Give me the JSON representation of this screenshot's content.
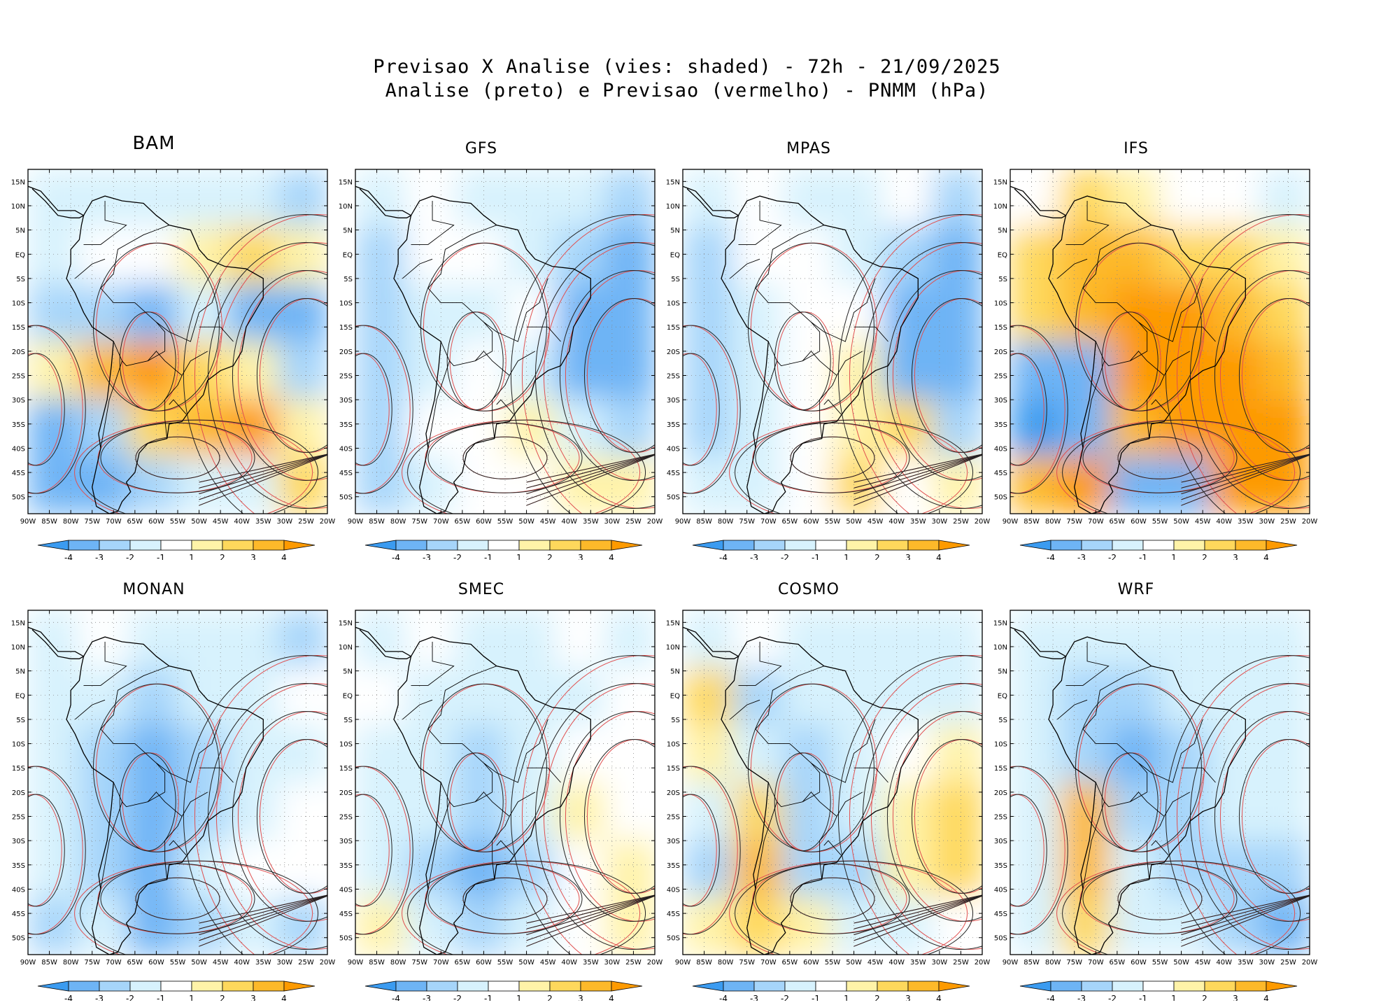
{
  "header": {
    "title_line1": "Previsao X Analise (vies: shaded) - 72h - 21/09/2025",
    "title_line2": "Analise (preto) e Previsao (vermelho) - PNMM (hPa)"
  },
  "axes": {
    "lat_labels": [
      "15N",
      "10N",
      "5N",
      "EQ",
      "5S",
      "10S",
      "15S",
      "20S",
      "25S",
      "30S",
      "35S",
      "40S",
      "45S",
      "50S"
    ],
    "lon_labels": [
      "90W",
      "85W",
      "80W",
      "75W",
      "70W",
      "65W",
      "60W",
      "55W",
      "50W",
      "45W",
      "40W",
      "35W",
      "30W",
      "25W",
      "20W"
    ]
  },
  "colorbar": {
    "labels": [
      "-4",
      "-3",
      "-2",
      "-1",
      "1",
      "2",
      "3",
      "4"
    ],
    "colors": [
      "#3b9bf0",
      "#6eb4f5",
      "#a6d5fa",
      "#d7f2fd",
      "#ffffff",
      "#fff3a8",
      "#fed85c",
      "#fdb92a",
      "#fd9a00"
    ]
  },
  "panels": [
    {
      "name": "BAM",
      "bold": true,
      "bias": [
        -1,
        -1,
        -1,
        -1,
        -1,
        -2,
        -1,
        0,
        0,
        1,
        2,
        1,
        -2,
        -2,
        -3,
        -1,
        -3,
        -3,
        1,
        3,
        4,
        2,
        1,
        -2,
        -3,
        -2,
        2,
        3,
        4,
        1,
        -3,
        -3,
        -2,
        -1,
        -1,
        2
      ]
    },
    {
      "name": "GFS",
      "bold": false,
      "bias": [
        -1,
        0,
        -1,
        -1,
        -1,
        -2,
        -2,
        0,
        0,
        -1,
        -2,
        -3,
        -2,
        -1,
        -1,
        0,
        -3,
        -3,
        -2,
        -1,
        0,
        -1,
        -3,
        -3,
        -2,
        0,
        0,
        1,
        -1,
        -2,
        -2,
        -1,
        0,
        0,
        1,
        1
      ]
    },
    {
      "name": "MPAS",
      "bold": false,
      "bias": [
        -1,
        0,
        -1,
        -1,
        0,
        -2,
        -2,
        0,
        0,
        -1,
        -2,
        -3,
        -2,
        -1,
        0,
        0,
        -3,
        -3,
        -2,
        -1,
        0,
        1,
        -3,
        -3,
        -2,
        -1,
        0,
        1,
        2,
        -2,
        -1,
        -1,
        0,
        2,
        0,
        1
      ]
    },
    {
      "name": "IFS",
      "bold": false,
      "bias": [
        0,
        2,
        1,
        0,
        0,
        -1,
        2,
        3,
        3,
        2,
        2,
        1,
        2,
        3,
        4,
        4,
        3,
        2,
        -3,
        -3,
        4,
        4,
        4,
        3,
        -4,
        -3,
        3,
        4,
        4,
        4,
        3,
        4,
        -3,
        -3,
        4,
        4
      ]
    },
    {
      "name": "MONAN",
      "bold": false,
      "bias": [
        -1,
        0,
        -1,
        -1,
        -1,
        -2,
        -1,
        -1,
        -2,
        -1,
        -1,
        0,
        -1,
        -2,
        -3,
        -2,
        -1,
        -1,
        -1,
        -2,
        -3,
        -2,
        -1,
        0,
        -1,
        -2,
        -3,
        -1,
        0,
        0,
        -2,
        -1,
        -3,
        -2,
        -1,
        -2
      ]
    },
    {
      "name": "SMEC",
      "bold": false,
      "bias": [
        -1,
        0,
        -1,
        -1,
        0,
        -1,
        0,
        -1,
        -1,
        -1,
        -1,
        0,
        -1,
        -1,
        -2,
        -1,
        0,
        0,
        -1,
        -1,
        -2,
        -1,
        1,
        0,
        -1,
        -2,
        -3,
        -2,
        0,
        1,
        1,
        -1,
        -2,
        -1,
        0,
        1
      ]
    },
    {
      "name": "COSMO",
      "bold": false,
      "bias": [
        -1,
        0,
        -1,
        -1,
        -1,
        -1,
        2,
        -2,
        -1,
        -1,
        -1,
        -1,
        1,
        -1,
        -2,
        -1,
        0,
        1,
        -1,
        2,
        -2,
        -1,
        1,
        2,
        -2,
        3,
        -2,
        -2,
        1,
        2,
        1,
        2,
        1,
        -1,
        -1,
        0
      ]
    },
    {
      "name": "WRF",
      "bold": false,
      "bias": [
        -1,
        -1,
        -1,
        -1,
        -1,
        -1,
        -1,
        -2,
        -2,
        -1,
        -1,
        -1,
        -1,
        -2,
        -3,
        -2,
        -1,
        -1,
        -1,
        3,
        -2,
        -2,
        -1,
        -1,
        -1,
        3,
        -1,
        -2,
        -2,
        -2,
        -1,
        2,
        -1,
        -1,
        -2,
        -3
      ]
    }
  ]
}
